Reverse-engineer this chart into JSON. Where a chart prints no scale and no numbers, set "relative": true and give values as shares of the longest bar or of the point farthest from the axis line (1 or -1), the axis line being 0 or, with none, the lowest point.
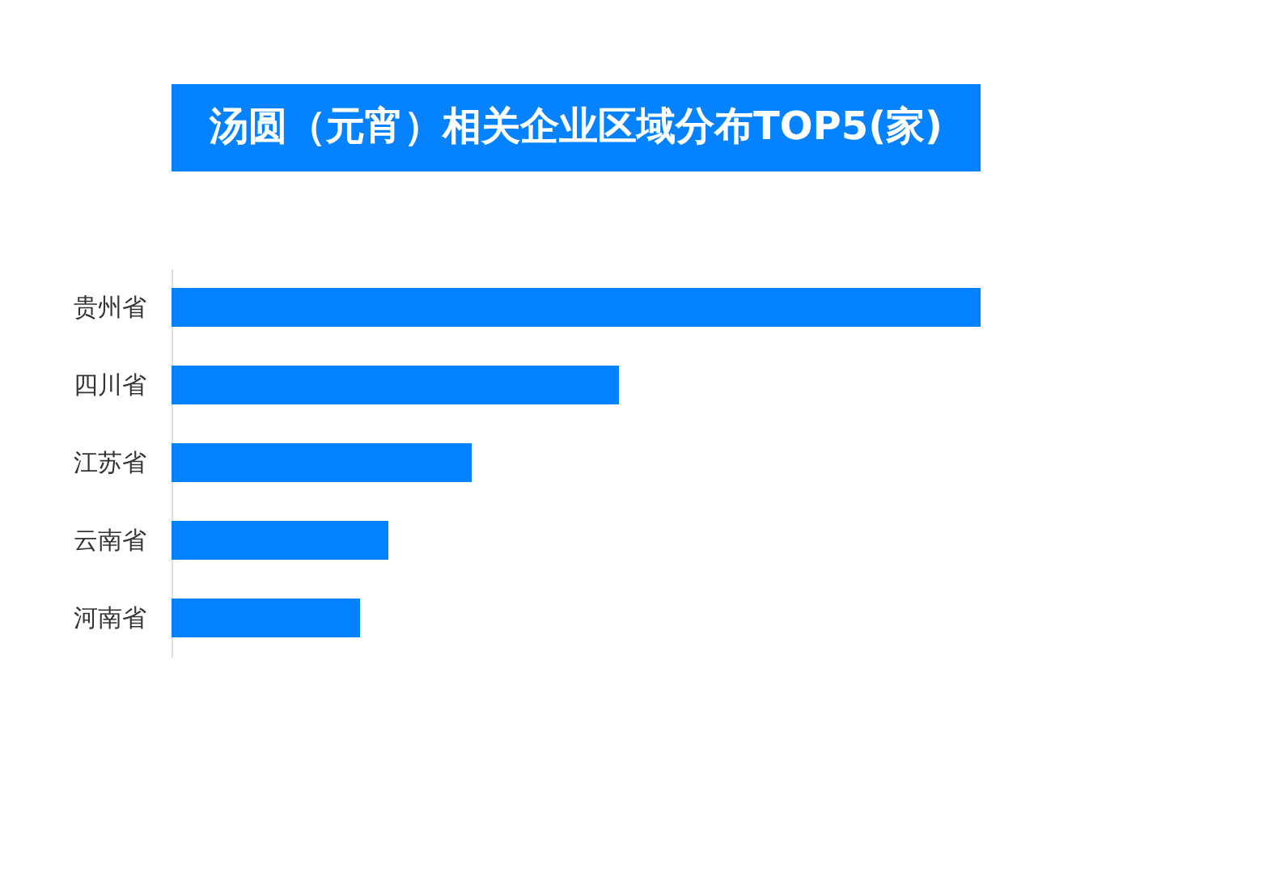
{
  "chart_data": {
    "type": "bar",
    "orientation": "horizontal",
    "relative": true,
    "title": "汤圆（元宵）相关企业区域分布TOP5(家)",
    "categories": [
      "贵州省",
      "四川省",
      "江苏省",
      "云南省",
      "河南省"
    ],
    "values": [
      1,
      0.553,
      0.371,
      0.268,
      0.233
    ],
    "color": "#0582ff",
    "grid": false
  }
}
